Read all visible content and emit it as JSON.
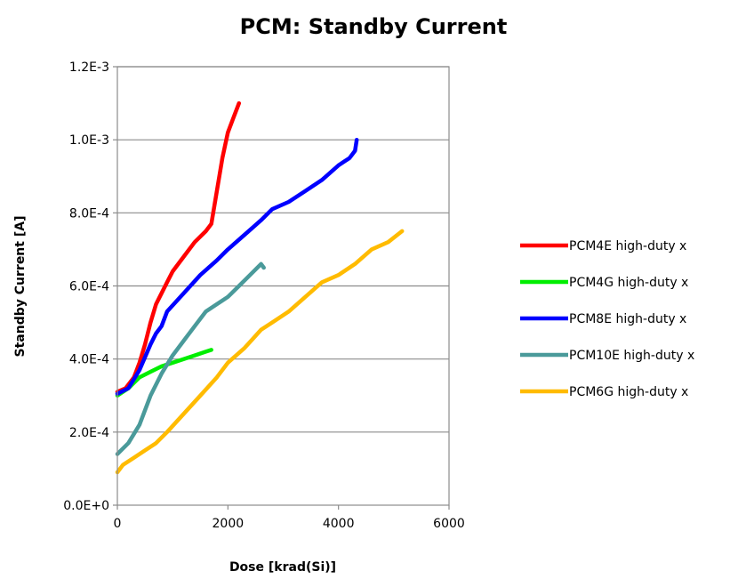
{
  "chart_data": {
    "type": "line",
    "title": "PCM: Standby Current",
    "xlabel": "Dose [krad(Si)]",
    "ylabel": "Standby Current [A]",
    "xlim": [
      0,
      6000
    ],
    "ylim": [
      0,
      0.0012
    ],
    "x_ticks": [
      0,
      2000,
      4000,
      6000
    ],
    "x_tick_labels": [
      "0",
      "2000",
      "4000",
      "6000"
    ],
    "y_ticks": [
      0,
      0.0002,
      0.0004,
      0.0006,
      0.0008,
      0.001,
      0.0012
    ],
    "y_tick_labels": [
      "0.0E+0",
      "2.0E-4",
      "4.0E-4",
      "6.0E-4",
      "8.0E-4",
      "1.0E-3",
      "1.2E-3"
    ],
    "grid": "horizontal",
    "legend_position": "right",
    "series": [
      {
        "name": "PCM4E high-duty x",
        "color": "#ff0000",
        "x": [
          0,
          150,
          300,
          400,
          500,
          600,
          700,
          800,
          900,
          1000,
          1200,
          1400,
          1600,
          1700,
          1800,
          1900,
          2000,
          2100,
          2200
        ],
        "y": [
          0.00031,
          0.00032,
          0.00035,
          0.00039,
          0.00044,
          0.0005,
          0.00055,
          0.00058,
          0.00061,
          0.00064,
          0.00068,
          0.00072,
          0.00075,
          0.00077,
          0.00086,
          0.00095,
          0.00102,
          0.00106,
          0.0011
        ]
      },
      {
        "name": "PCM4G high-duty x",
        "color": "#00ee00",
        "x": [
          0,
          200,
          400,
          600,
          800,
          1000,
          1200,
          1400,
          1600,
          1700
        ],
        "y": [
          0.0003,
          0.00032,
          0.00035,
          0.000365,
          0.00038,
          0.00039,
          0.0004,
          0.00041,
          0.00042,
          0.000425
        ]
      },
      {
        "name": "PCM8E high-duty x",
        "color": "#0000ff",
        "x": [
          0,
          200,
          400,
          600,
          700,
          800,
          900,
          1200,
          1500,
          1800,
          2000,
          2300,
          2600,
          2800,
          3100,
          3400,
          3700,
          4000,
          4100,
          4200,
          4300,
          4330
        ],
        "y": [
          0.000305,
          0.00032,
          0.00037,
          0.00044,
          0.00047,
          0.00049,
          0.00053,
          0.00058,
          0.00063,
          0.00067,
          0.0007,
          0.00074,
          0.00078,
          0.00081,
          0.00083,
          0.00086,
          0.00089,
          0.00093,
          0.00094,
          0.00095,
          0.00097,
          0.001
        ]
      },
      {
        "name": "PCM10E high-duty x",
        "color": "#4a9a9a",
        "x": [
          0,
          200,
          400,
          500,
          600,
          800,
          1000,
          1200,
          1400,
          1600,
          1800,
          2000,
          2200,
          2400,
          2600,
          2650
        ],
        "y": [
          0.00014,
          0.00017,
          0.00022,
          0.00026,
          0.0003,
          0.00036,
          0.00041,
          0.00045,
          0.00049,
          0.00053,
          0.00055,
          0.00057,
          0.0006,
          0.00063,
          0.00066,
          0.00065
        ]
      },
      {
        "name": "PCM6G high-duty x",
        "color": "#ffbb00",
        "x": [
          0,
          100,
          300,
          500,
          700,
          900,
          1200,
          1500,
          1800,
          2000,
          2300,
          2600,
          2800,
          3100,
          3400,
          3700,
          4000,
          4300,
          4600,
          4900,
          5150
        ],
        "y": [
          9e-05,
          0.00011,
          0.00013,
          0.00015,
          0.00017,
          0.0002,
          0.00025,
          0.0003,
          0.00035,
          0.00039,
          0.00043,
          0.00048,
          0.0005,
          0.00053,
          0.00057,
          0.00061,
          0.00063,
          0.00066,
          0.0007,
          0.00072,
          0.00075
        ]
      }
    ]
  }
}
